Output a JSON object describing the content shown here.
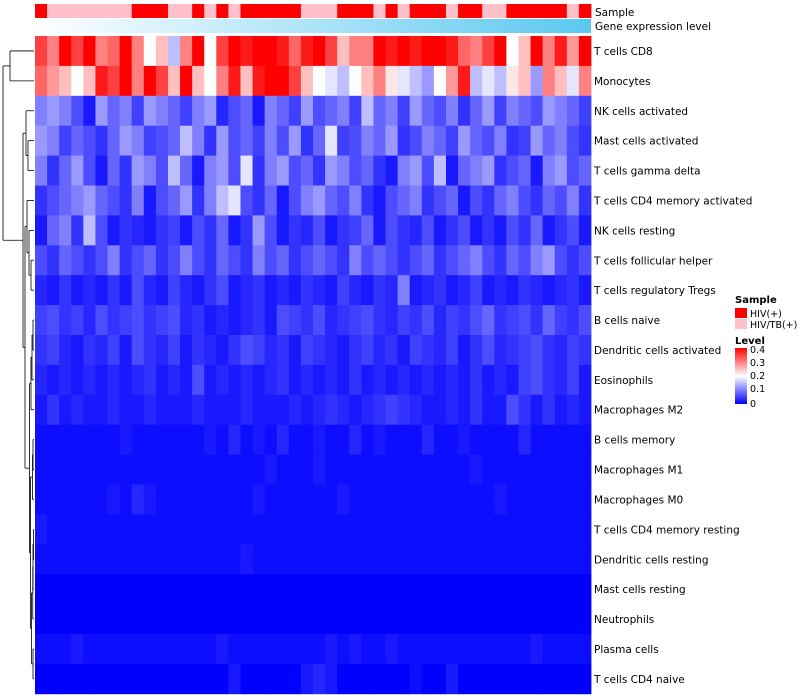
{
  "chart_data": {
    "type": "heatmap",
    "title": "",
    "annotation_tracks": [
      {
        "name": "Sample",
        "label": "Sample"
      },
      {
        "name": "Gene expression level",
        "label": "Gene expression level"
      }
    ],
    "rows": [
      "T cells CD8",
      "Monocytes",
      "NK cells activated",
      "Mast cells activated",
      "T cells gamma delta",
      "T cells CD4 memory activated",
      "NK cells resting",
      "T cells follicular helper",
      "T cells regulatory  Tregs",
      "B cells naive",
      "Dendritic cells activated",
      "Eosinophils",
      "Macrophages M2",
      "B cells memory",
      "Macrophages M1",
      "Macrophages M0",
      "T cells CD4 memory resting",
      "Dendritic cells resting",
      "Mast cells resting",
      "Neutrophils",
      "Plasma cells",
      "T cells CD4 naive"
    ],
    "n_columns": 46,
    "sample_groups": [
      "HIV(+)",
      "HIV/TB(+)",
      "HIV/TB(+)",
      "HIV/TB(+)",
      "HIV/TB(+)",
      "HIV/TB(+)",
      "HIV/TB(+)",
      "HIV/TB(+)",
      "HIV(+)",
      "HIV(+)",
      "HIV(+)",
      "HIV/TB(+)",
      "HIV/TB(+)",
      "HIV(+)",
      "HIV/TB(+)",
      "HIV(+)",
      "HIV/TB(+)",
      "HIV(+)",
      "HIV(+)",
      "HIV(+)",
      "HIV(+)",
      "HIV(+)",
      "HIV/TB(+)",
      "HIV/TB(+)",
      "HIV/TB(+)",
      "HIV(+)",
      "HIV(+)",
      "HIV(+)",
      "HIV/TB(+)",
      "HIV(+)",
      "HIV/TB(+)",
      "HIV(+)",
      "HIV(+)",
      "HIV(+)",
      "HIV/TB(+)",
      "HIV(+)",
      "HIV(+)",
      "HIV/TB(+)",
      "HIV/TB(+)",
      "HIV(+)",
      "HIV(+)",
      "HIV(+)",
      "HIV(+)",
      "HIV(+)",
      "HIV/TB(+)",
      "HIV(+)"
    ],
    "expression_level_range": [
      0,
      1
    ],
    "values": [
      [
        0.35,
        0.3,
        0.42,
        0.35,
        0.4,
        0.3,
        0.32,
        0.4,
        0.3,
        0.2,
        0.25,
        0.15,
        0.3,
        0.4,
        0.2,
        0.35,
        0.42,
        0.38,
        0.4,
        0.42,
        0.38,
        0.32,
        0.38,
        0.4,
        0.35,
        0.25,
        0.3,
        0.3,
        0.4,
        0.38,
        0.42,
        0.38,
        0.45,
        0.42,
        0.38,
        0.32,
        0.3,
        0.35,
        0.4,
        0.2,
        0.25,
        0.42,
        0.3,
        0.38,
        0.28,
        0.4
      ],
      [
        0.32,
        0.28,
        0.25,
        0.2,
        0.25,
        0.38,
        0.35,
        0.42,
        0.3,
        0.45,
        0.35,
        0.25,
        0.42,
        0.25,
        0.2,
        0.3,
        0.38,
        0.25,
        0.38,
        0.4,
        0.42,
        0.35,
        0.25,
        0.2,
        0.18,
        0.15,
        0.2,
        0.25,
        0.3,
        0.22,
        0.18,
        0.15,
        0.12,
        0.2,
        0.28,
        0.38,
        0.15,
        0.18,
        0.15,
        0.22,
        0.25,
        0.12,
        0.3,
        0.25,
        0.18,
        0.3
      ],
      [
        0.1,
        0.12,
        0.1,
        0.06,
        0.02,
        0.12,
        0.08,
        0.1,
        0.05,
        0.12,
        0.1,
        0.08,
        0.05,
        0.1,
        0.12,
        0.03,
        0.06,
        0.08,
        0.02,
        0.1,
        0.08,
        0.05,
        0.12,
        0.06,
        0.08,
        0.1,
        0.05,
        0.15,
        0.08,
        0.1,
        0.05,
        0.12,
        0.08,
        0.06,
        0.1,
        0.04,
        0.08,
        0.12,
        0.05,
        0.1,
        0.08,
        0.06,
        0.12,
        0.1,
        0.08,
        0.05
      ],
      [
        0.12,
        0.1,
        0.05,
        0.08,
        0.06,
        0.04,
        0.08,
        0.12,
        0.1,
        0.05,
        0.06,
        0.08,
        0.15,
        0.1,
        0.04,
        0.12,
        0.06,
        0.08,
        0.05,
        0.1,
        0.06,
        0.12,
        0.04,
        0.08,
        0.18,
        0.05,
        0.06,
        0.1,
        0.08,
        0.12,
        0.04,
        0.06,
        0.1,
        0.08,
        0.05,
        0.12,
        0.08,
        0.06,
        0.1,
        0.04,
        0.05,
        0.12,
        0.08,
        0.1,
        0.06,
        0.04
      ],
      [
        0.1,
        0.04,
        0.08,
        0.12,
        0.06,
        0.02,
        0.08,
        0.04,
        0.12,
        0.1,
        0.06,
        0.15,
        0.08,
        0.02,
        0.1,
        0.12,
        0.06,
        0.18,
        0.04,
        0.1,
        0.12,
        0.06,
        0.08,
        0.04,
        0.12,
        0.1,
        0.06,
        0.08,
        0.04,
        0.02,
        0.1,
        0.12,
        0.06,
        0.15,
        0.02,
        0.08,
        0.1,
        0.12,
        0.04,
        0.06,
        0.08,
        0.02,
        0.1,
        0.12,
        0.06,
        0.08
      ],
      [
        0.04,
        0.06,
        0.08,
        0.1,
        0.12,
        0.08,
        0.06,
        0.04,
        0.1,
        0.02,
        0.06,
        0.08,
        0.12,
        0.04,
        0.1,
        0.15,
        0.18,
        0.06,
        0.04,
        0.08,
        0.02,
        0.06,
        0.1,
        0.12,
        0.08,
        0.06,
        0.1,
        0.04,
        0.02,
        0.06,
        0.08,
        0.1,
        0.04,
        0.06,
        0.08,
        0.02,
        0.06,
        0.04,
        0.08,
        0.1,
        0.06,
        0.04,
        0.08,
        0.06,
        0.1,
        0.04
      ],
      [
        0.02,
        0.08,
        0.1,
        0.04,
        0.15,
        0.06,
        0.02,
        0.04,
        0.03,
        0.02,
        0.04,
        0.05,
        0.02,
        0.06,
        0.04,
        0.08,
        0.02,
        0.04,
        0.12,
        0.06,
        0.02,
        0.04,
        0.03,
        0.06,
        0.02,
        0.04,
        0.05,
        0.08,
        0.02,
        0.06,
        0.04,
        0.03,
        0.06,
        0.02,
        0.04,
        0.06,
        0.02,
        0.04,
        0.02,
        0.06,
        0.04,
        0.08,
        0.02,
        0.04,
        0.06,
        0.02
      ],
      [
        0.06,
        0.04,
        0.08,
        0.06,
        0.04,
        0.06,
        0.1,
        0.04,
        0.06,
        0.08,
        0.04,
        0.06,
        0.1,
        0.06,
        0.04,
        0.08,
        0.06,
        0.04,
        0.1,
        0.06,
        0.08,
        0.04,
        0.06,
        0.08,
        0.06,
        0.04,
        0.1,
        0.06,
        0.08,
        0.06,
        0.04,
        0.06,
        0.08,
        0.04,
        0.06,
        0.08,
        0.1,
        0.06,
        0.04,
        0.08,
        0.06,
        0.1,
        0.12,
        0.06,
        0.04,
        0.06
      ],
      [
        0.03,
        0.02,
        0.04,
        0.02,
        0.03,
        0.02,
        0.04,
        0.02,
        0.06,
        0.03,
        0.02,
        0.05,
        0.03,
        0.02,
        0.04,
        0.06,
        0.02,
        0.03,
        0.04,
        0.02,
        0.03,
        0.02,
        0.04,
        0.03,
        0.02,
        0.05,
        0.03,
        0.02,
        0.04,
        0.03,
        0.1,
        0.02,
        0.03,
        0.04,
        0.02,
        0.03,
        0.05,
        0.02,
        0.03,
        0.02,
        0.04,
        0.03,
        0.02,
        0.03,
        0.04,
        0.02
      ],
      [
        0.05,
        0.06,
        0.04,
        0.05,
        0.03,
        0.06,
        0.04,
        0.05,
        0.06,
        0.04,
        0.05,
        0.06,
        0.03,
        0.04,
        0.02,
        0.03,
        0.02,
        0.03,
        0.04,
        0.02,
        0.06,
        0.05,
        0.04,
        0.06,
        0.03,
        0.04,
        0.05,
        0.06,
        0.04,
        0.03,
        0.05,
        0.04,
        0.06,
        0.03,
        0.05,
        0.04,
        0.06,
        0.08,
        0.04,
        0.05,
        0.06,
        0.04,
        0.08,
        0.05,
        0.04,
        0.06
      ],
      [
        0.04,
        0.05,
        0.03,
        0.02,
        0.04,
        0.03,
        0.05,
        0.02,
        0.06,
        0.04,
        0.03,
        0.05,
        0.02,
        0.04,
        0.03,
        0.02,
        0.04,
        0.06,
        0.05,
        0.03,
        0.04,
        0.02,
        0.05,
        0.04,
        0.03,
        0.02,
        0.04,
        0.05,
        0.03,
        0.04,
        0.02,
        0.05,
        0.04,
        0.03,
        0.05,
        0.02,
        0.04,
        0.06,
        0.03,
        0.04,
        0.05,
        0.06,
        0.04,
        0.03,
        0.05,
        0.04
      ],
      [
        0.03,
        0.02,
        0.03,
        0.02,
        0.03,
        0.02,
        0.03,
        0.02,
        0.03,
        0.04,
        0.02,
        0.03,
        0.02,
        0.06,
        0.02,
        0.03,
        0.02,
        0.03,
        0.02,
        0.03,
        0.04,
        0.02,
        0.03,
        0.02,
        0.03,
        0.02,
        0.04,
        0.02,
        0.03,
        0.02,
        0.03,
        0.02,
        0.03,
        0.02,
        0.03,
        0.02,
        0.04,
        0.02,
        0.03,
        0.02,
        0.05,
        0.06,
        0.04,
        0.03,
        0.05,
        0.02
      ],
      [
        0.02,
        0.04,
        0.02,
        0.03,
        0.02,
        0.02,
        0.03,
        0.02,
        0.02,
        0.03,
        0.02,
        0.02,
        0.02,
        0.03,
        0.02,
        0.02,
        0.02,
        0.03,
        0.02,
        0.02,
        0.02,
        0.03,
        0.02,
        0.03,
        0.04,
        0.03,
        0.02,
        0.03,
        0.04,
        0.05,
        0.04,
        0.03,
        0.02,
        0.02,
        0.03,
        0.02,
        0.04,
        0.02,
        0.02,
        0.06,
        0.04,
        0.02,
        0.04,
        0.02,
        0.03,
        0.02
      ],
      [
        0.01,
        0.01,
        0.01,
        0.01,
        0.01,
        0.01,
        0.01,
        0.02,
        0.01,
        0.01,
        0.01,
        0.01,
        0.01,
        0.01,
        0.02,
        0.01,
        0.03,
        0.01,
        0.02,
        0.01,
        0.03,
        0.01,
        0.01,
        0.02,
        0.01,
        0.01,
        0.03,
        0.01,
        0.02,
        0.01,
        0.01,
        0.01,
        0.03,
        0.01,
        0.01,
        0.02,
        0.01,
        0.01,
        0.01,
        0.01,
        0.03,
        0.01,
        0.01,
        0.01,
        0.01,
        0.01
      ],
      [
        0.01,
        0.01,
        0.01,
        0.01,
        0.01,
        0.01,
        0.01,
        0.01,
        0.01,
        0.01,
        0.01,
        0.01,
        0.01,
        0.01,
        0.01,
        0.01,
        0.01,
        0.01,
        0.01,
        0.02,
        0.01,
        0.01,
        0.01,
        0.02,
        0.01,
        0.01,
        0.01,
        0.01,
        0.01,
        0.01,
        0.01,
        0.01,
        0.01,
        0.01,
        0.01,
        0.01,
        0.02,
        0.01,
        0.01,
        0.01,
        0.01,
        0.01,
        0.01,
        0.01,
        0.01,
        0.01
      ],
      [
        0.01,
        0.01,
        0.01,
        0.01,
        0.01,
        0.01,
        0.02,
        0.01,
        0.03,
        0.02,
        0.01,
        0.01,
        0.01,
        0.01,
        0.01,
        0.01,
        0.01,
        0.01,
        0.02,
        0.01,
        0.01,
        0.01,
        0.01,
        0.01,
        0.01,
        0.02,
        0.01,
        0.01,
        0.01,
        0.01,
        0.01,
        0.01,
        0.01,
        0.01,
        0.01,
        0.01,
        0.01,
        0.01,
        0.02,
        0.01,
        0.01,
        0.01,
        0.01,
        0.01,
        0.01,
        0.01
      ],
      [
        0.02,
        0.01,
        0.01,
        0.01,
        0.01,
        0.01,
        0.01,
        0.01,
        0.01,
        0.01,
        0.01,
        0.01,
        0.01,
        0.01,
        0.01,
        0.01,
        0.01,
        0.01,
        0.01,
        0.01,
        0.01,
        0.01,
        0.01,
        0.01,
        0.01,
        0.01,
        0.01,
        0.01,
        0.01,
        0.01,
        0.01,
        0.01,
        0.01,
        0.01,
        0.01,
        0.01,
        0.01,
        0.01,
        0.01,
        0.01,
        0.01,
        0.01,
        0.01,
        0.01,
        0.01,
        0.01
      ],
      [
        0.01,
        0.01,
        0.01,
        0.01,
        0.01,
        0.01,
        0.01,
        0.01,
        0.01,
        0.01,
        0.01,
        0.01,
        0.01,
        0.01,
        0.01,
        0.01,
        0.01,
        0.02,
        0.01,
        0.01,
        0.01,
        0.01,
        0.01,
        0.01,
        0.01,
        0.01,
        0.01,
        0.01,
        0.01,
        0.01,
        0.01,
        0.01,
        0.01,
        0.01,
        0.01,
        0.01,
        0.01,
        0.01,
        0.01,
        0.01,
        0.01,
        0.01,
        0.01,
        0.01,
        0.01,
        0.01
      ],
      [
        0,
        0,
        0,
        0,
        0,
        0,
        0,
        0,
        0,
        0,
        0,
        0,
        0,
        0,
        0,
        0,
        0,
        0,
        0,
        0,
        0,
        0,
        0,
        0,
        0,
        0,
        0,
        0,
        0,
        0,
        0,
        0,
        0,
        0,
        0,
        0,
        0,
        0,
        0,
        0,
        0,
        0,
        0,
        0,
        0,
        0
      ],
      [
        0,
        0,
        0,
        0,
        0,
        0,
        0,
        0,
        0,
        0,
        0,
        0,
        0,
        0,
        0,
        0,
        0,
        0,
        0,
        0,
        0,
        0,
        0,
        0,
        0,
        0,
        0,
        0,
        0,
        0,
        0,
        0,
        0,
        0,
        0,
        0,
        0,
        0,
        0,
        0,
        0,
        0,
        0,
        0,
        0,
        0
      ],
      [
        0.01,
        0.01,
        0.01,
        0.02,
        0.01,
        0.01,
        0.01,
        0.01,
        0.01,
        0.01,
        0.01,
        0.01,
        0.01,
        0.01,
        0.01,
        0.02,
        0.01,
        0.01,
        0.01,
        0.01,
        0.01,
        0.01,
        0.01,
        0.01,
        0.02,
        0.01,
        0.02,
        0.01,
        0.01,
        0.02,
        0.01,
        0.01,
        0.01,
        0.01,
        0.01,
        0.01,
        0.01,
        0.01,
        0.01,
        0.01,
        0.01,
        0.02,
        0.01,
        0.01,
        0.01,
        0.01
      ],
      [
        0,
        0,
        0,
        0,
        0,
        0,
        0,
        0,
        0,
        0,
        0,
        0,
        0,
        0,
        0,
        0,
        0.02,
        0,
        0,
        0,
        0,
        0,
        0.02,
        0.03,
        0.02,
        0,
        0,
        0,
        0,
        0,
        0,
        0.01,
        0,
        0,
        0.02,
        0,
        0,
        0,
        0,
        0,
        0,
        0,
        0,
        0,
        0,
        0
      ]
    ],
    "legends": {
      "sample": {
        "title": "Sample",
        "entries": [
          {
            "label": "HIV(+)",
            "color": "#ff0000"
          },
          {
            "label": "HIV/TB(+)",
            "color": "#ffc0cb"
          }
        ]
      },
      "level": {
        "title": "Level",
        "min": 0,
        "max": 0.4,
        "ticks": [
          "0.4",
          "0.3",
          "0.2",
          "0.1",
          "0"
        ],
        "colors": {
          "low": "#0000ff",
          "mid": "#ffffff",
          "high": "#ff0000"
        }
      }
    },
    "gene_expression_colors": {
      "low": "#ffffff",
      "high": "#5bc8f0"
    }
  }
}
